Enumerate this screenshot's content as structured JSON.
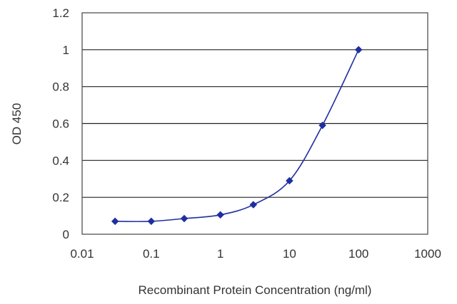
{
  "chart_data": {
    "type": "line",
    "x_scale": "log",
    "ylabel": "OD 450",
    "xlabel": "Recombinant Protein Concentration (ng/ml)",
    "xlim": [
      0.01,
      1000
    ],
    "ylim": [
      0,
      1.2
    ],
    "x_ticks": [
      "0.01",
      "0.1",
      "1",
      "10",
      "100",
      "1000"
    ],
    "y_ticks": [
      "0",
      "0.2",
      "0.4",
      "0.6",
      "0.8",
      "1",
      "1.2"
    ],
    "grid": "horizontal",
    "marker": "diamond",
    "series_color": "#1f2fa0",
    "series": [
      {
        "x": [
          0.03,
          0.1,
          0.3,
          1,
          3,
          10,
          30,
          100
        ],
        "y": [
          0.07,
          0.07,
          0.085,
          0.105,
          0.16,
          0.29,
          0.59,
          1.0
        ]
      }
    ]
  }
}
